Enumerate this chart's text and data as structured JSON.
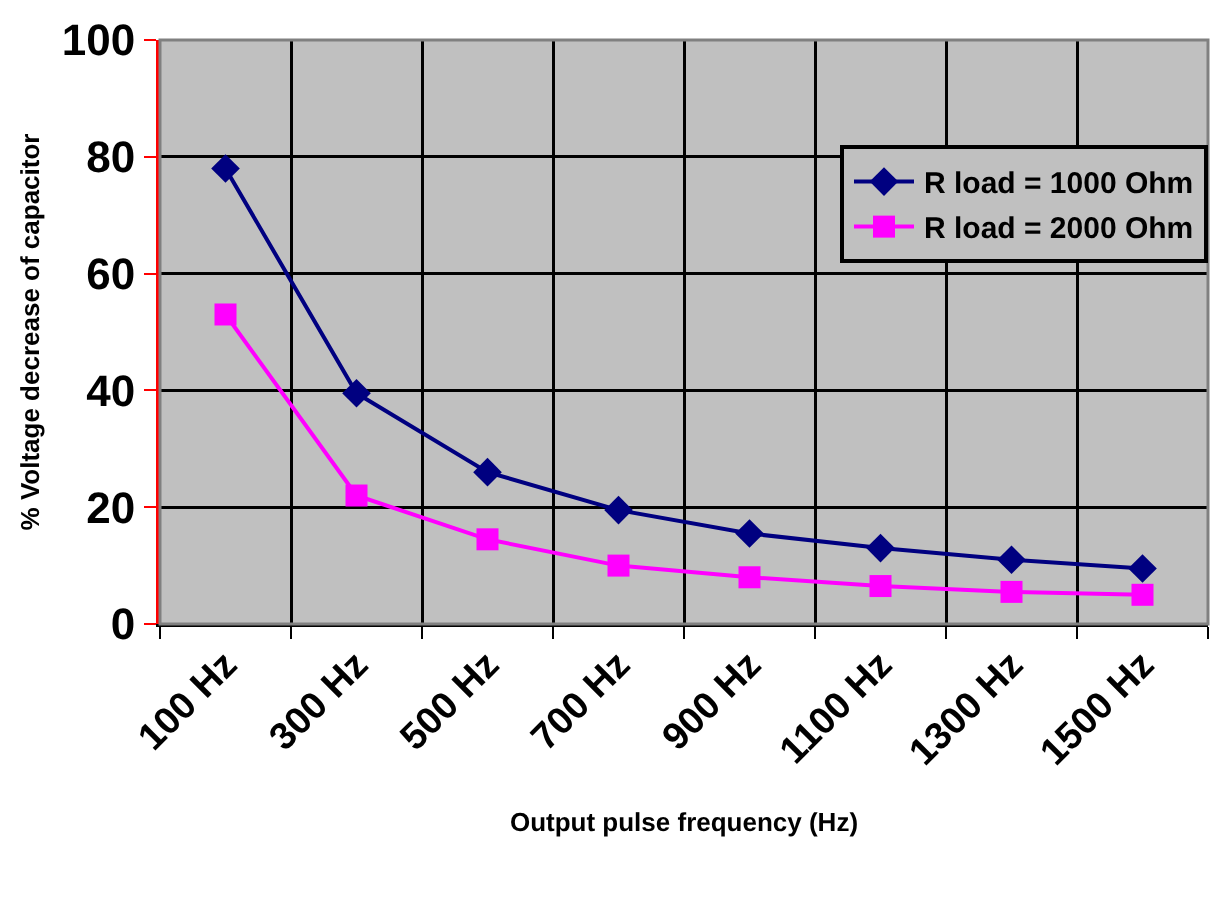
{
  "chart_data": {
    "type": "line",
    "xlabel": "Output pulse frequency (Hz)",
    "ylabel": "% Voltage decrease of capacitor",
    "categories": [
      "100 Hz",
      "300 Hz",
      "500 Hz",
      "700 Hz",
      "900 Hz",
      "1100 Hz",
      "1300 Hz",
      "1500 Hz"
    ],
    "series": [
      {
        "name": "R load = 1000 Ohm",
        "color": "#000080",
        "marker": "diamond",
        "values": [
          78,
          39.5,
          26,
          19.5,
          15.5,
          13,
          11,
          9.5
        ]
      },
      {
        "name": "R load = 2000 Ohm",
        "color": "#ff00ff",
        "marker": "square",
        "values": [
          53,
          22,
          14.5,
          10,
          8,
          6.5,
          5.5,
          5
        ]
      }
    ],
    "ylim": [
      0,
      100
    ],
    "yticks": [
      0,
      20,
      40,
      60,
      80,
      100
    ],
    "grid": true,
    "legend": "top right",
    "line_style": "solid"
  }
}
